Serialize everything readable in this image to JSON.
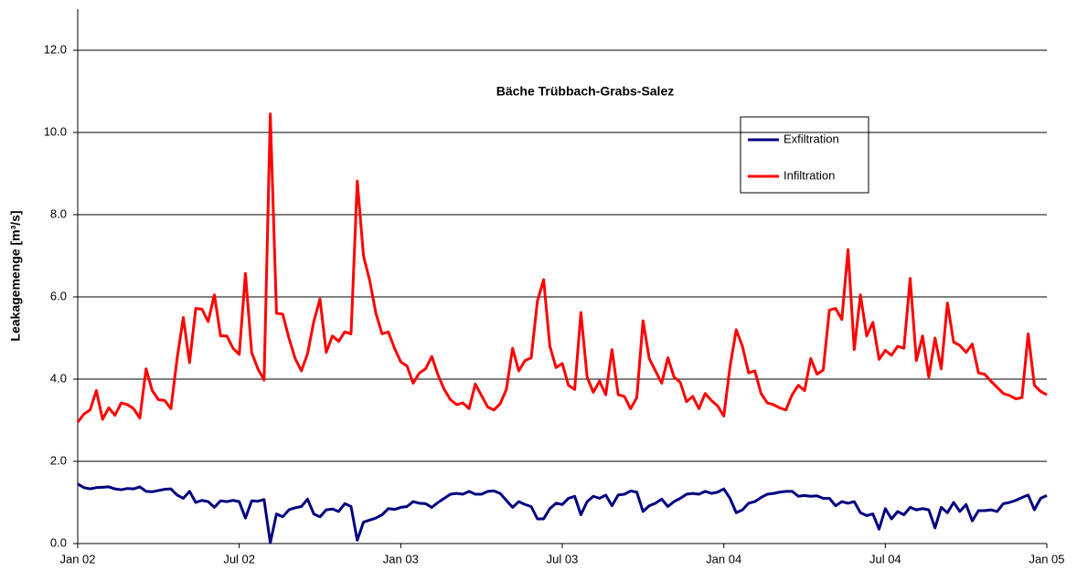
{
  "chart_data": {
    "type": "line",
    "title": "Bäche Trübbach-Grabs-Salez",
    "y_label": "Leakagemenge [m³/s]",
    "categories": [
      "Jan 02",
      null,
      null,
      null,
      null,
      null,
      null,
      null,
      null,
      null,
      null,
      null,
      null,
      null,
      null,
      null,
      null,
      null,
      null,
      null,
      null,
      null,
      null,
      null,
      null,
      null,
      "Jul 02",
      null,
      null,
      null,
      null,
      null,
      null,
      null,
      null,
      null,
      null,
      null,
      null,
      null,
      null,
      null,
      null,
      null,
      null,
      null,
      null,
      null,
      null,
      null,
      null,
      null,
      "Jan 03",
      null,
      null,
      null,
      null,
      null,
      null,
      null,
      null,
      null,
      null,
      null,
      null,
      null,
      null,
      null,
      null,
      null,
      null,
      null,
      null,
      null,
      null,
      null,
      null,
      null,
      "Jul 03",
      null,
      null,
      null,
      null,
      null,
      null,
      null,
      null,
      null,
      null,
      null,
      null,
      null,
      null,
      null,
      null,
      null,
      null,
      null,
      null,
      null,
      null,
      null,
      null,
      null,
      "Jan 04",
      null,
      null,
      null,
      null,
      null,
      null,
      null,
      null,
      null,
      null,
      null,
      null,
      null,
      null,
      null,
      null,
      null,
      null,
      null,
      null,
      null,
      null,
      null,
      null,
      null,
      "Jul 04",
      null,
      null,
      null,
      null,
      null,
      null,
      null,
      null,
      null,
      null,
      null,
      null,
      null,
      null,
      null,
      null,
      null,
      null,
      null,
      null,
      null,
      null,
      null,
      null,
      null,
      "Jan 05"
    ],
    "series": [
      {
        "name": "Exfiltration",
        "color": "#000080",
        "values": [
          1.45,
          1.36,
          1.33,
          1.36,
          1.37,
          1.38,
          1.33,
          1.31,
          1.34,
          1.33,
          1.38,
          1.27,
          1.26,
          1.29,
          1.32,
          1.33,
          1.18,
          1.1,
          1.27,
          1.0,
          1.05,
          1.02,
          0.88,
          1.04,
          1.02,
          1.05,
          1.02,
          0.62,
          1.04,
          1.03,
          1.07,
          0.02,
          0.72,
          0.65,
          0.82,
          0.87,
          0.9,
          1.08,
          0.72,
          0.65,
          0.82,
          0.84,
          0.78,
          0.97,
          0.9,
          0.08,
          0.52,
          0.57,
          0.62,
          0.7,
          0.85,
          0.83,
          0.88,
          0.9,
          1.02,
          0.98,
          0.97,
          0.88,
          1.0,
          1.1,
          1.2,
          1.22,
          1.2,
          1.27,
          1.2,
          1.2,
          1.27,
          1.28,
          1.22,
          1.05,
          0.88,
          1.02,
          0.95,
          0.9,
          0.6,
          0.6,
          0.85,
          0.98,
          0.95,
          1.1,
          1.15,
          0.7,
          1.02,
          1.15,
          1.1,
          1.18,
          0.92,
          1.18,
          1.2,
          1.28,
          1.25,
          0.78,
          0.92,
          0.98,
          1.08,
          0.9,
          1.02,
          1.1,
          1.2,
          1.22,
          1.2,
          1.27,
          1.22,
          1.25,
          1.33,
          1.1,
          0.75,
          0.82,
          0.98,
          1.02,
          1.12,
          1.2,
          1.22,
          1.25,
          1.27,
          1.27,
          1.15,
          1.17,
          1.15,
          1.16,
          1.1,
          1.1,
          0.92,
          1.02,
          0.98,
          1.02,
          0.75,
          0.68,
          0.72,
          0.35,
          0.85,
          0.6,
          0.78,
          0.7,
          0.88,
          0.82,
          0.85,
          0.82,
          0.38,
          0.88,
          0.75,
          1.0,
          0.78,
          0.95,
          0.55,
          0.8,
          0.8,
          0.82,
          0.78,
          0.97,
          1.0,
          1.05,
          1.12,
          1.18,
          0.82,
          1.1,
          1.17
        ]
      },
      {
        "name": "Infiltration",
        "color": "#ff0000",
        "values": [
          2.95,
          3.15,
          3.25,
          3.72,
          3.02,
          3.3,
          3.12,
          3.42,
          3.38,
          3.28,
          3.05,
          4.25,
          3.72,
          3.5,
          3.48,
          3.28,
          4.5,
          5.5,
          4.4,
          5.72,
          5.7,
          5.4,
          6.05,
          5.05,
          5.05,
          4.75,
          4.6,
          6.57,
          4.65,
          4.25,
          3.98,
          10.45,
          5.6,
          5.58,
          5.0,
          4.5,
          4.2,
          4.62,
          5.4,
          5.95,
          4.65,
          5.05,
          4.92,
          5.15,
          5.1,
          8.82,
          7.0,
          6.4,
          5.6,
          5.1,
          5.15,
          4.75,
          4.42,
          4.32,
          3.9,
          4.15,
          4.25,
          4.55,
          4.1,
          3.75,
          3.5,
          3.38,
          3.42,
          3.28,
          3.88,
          3.6,
          3.32,
          3.25,
          3.4,
          3.75,
          4.75,
          4.2,
          4.45,
          4.52,
          5.9,
          6.42,
          4.8,
          4.28,
          4.38,
          3.85,
          3.75,
          5.62,
          4.05,
          3.68,
          3.95,
          3.62,
          4.72,
          3.62,
          3.58,
          3.28,
          3.55,
          5.42,
          4.5,
          4.2,
          3.9,
          4.52,
          4.05,
          3.92,
          3.45,
          3.58,
          3.28,
          3.65,
          3.48,
          3.35,
          3.1,
          4.3,
          5.2,
          4.8,
          4.15,
          4.2,
          3.65,
          3.42,
          3.38,
          3.3,
          3.25,
          3.62,
          3.85,
          3.72,
          4.5,
          4.12,
          4.22,
          5.68,
          5.72,
          5.45,
          7.15,
          4.72,
          6.05,
          5.05,
          5.38,
          4.48,
          4.7,
          4.58,
          4.8,
          4.75,
          6.45,
          4.45,
          5.05,
          4.05,
          5.0,
          4.25,
          5.85,
          4.9,
          4.82,
          4.65,
          4.85,
          4.15,
          4.12,
          3.95,
          3.8,
          3.65,
          3.6,
          3.52,
          3.55,
          5.1,
          3.85,
          3.7,
          3.62
        ]
      }
    ],
    "ylim": [
      0,
      13
    ],
    "yticks": [
      {
        "value": 0,
        "label": "0.0"
      },
      {
        "value": 2,
        "label": "2.0"
      },
      {
        "value": 4,
        "label": "4.0"
      },
      {
        "value": 6,
        "label": "6.0"
      },
      {
        "value": 8,
        "label": "8.0"
      },
      {
        "value": 10,
        "label": "10.0"
      },
      {
        "value": 12,
        "label": "12.0"
      }
    ],
    "grid": true
  }
}
